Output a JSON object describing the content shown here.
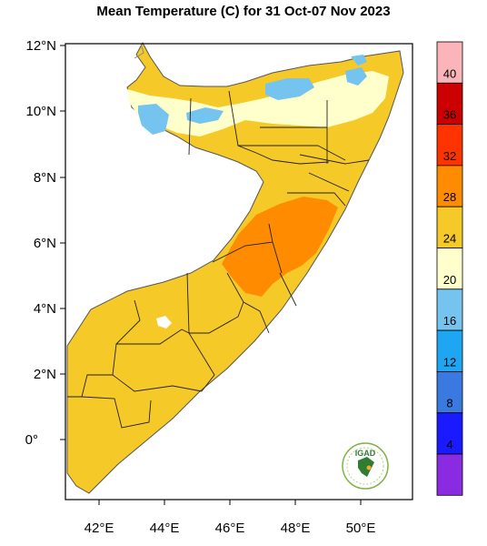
{
  "title": "Mean Temperature (C) for 31 Oct-07 Nov 2023",
  "map": {
    "lat_ticks": [
      "12°N",
      "10°N",
      "8°N",
      "6°N",
      "4°N",
      "2°N",
      "0°"
    ],
    "lon_ticks": [
      "42°E",
      "44°E",
      "46°E",
      "48°E",
      "50°E"
    ]
  },
  "colorbar": {
    "labels": [
      "40",
      "36",
      "32",
      "28",
      "24",
      "20",
      "16",
      "12",
      "8",
      "4"
    ],
    "colors": [
      "#fbb4b9",
      "#cc0000",
      "#ff3300",
      "#ff8c00",
      "#f5c928",
      "#ffffcc",
      "#74c4ef",
      "#1fa6f2",
      "#3a7ae0",
      "#1a1aff",
      "#8a2be2"
    ]
  },
  "logo": {
    "text": "IGAD"
  }
}
